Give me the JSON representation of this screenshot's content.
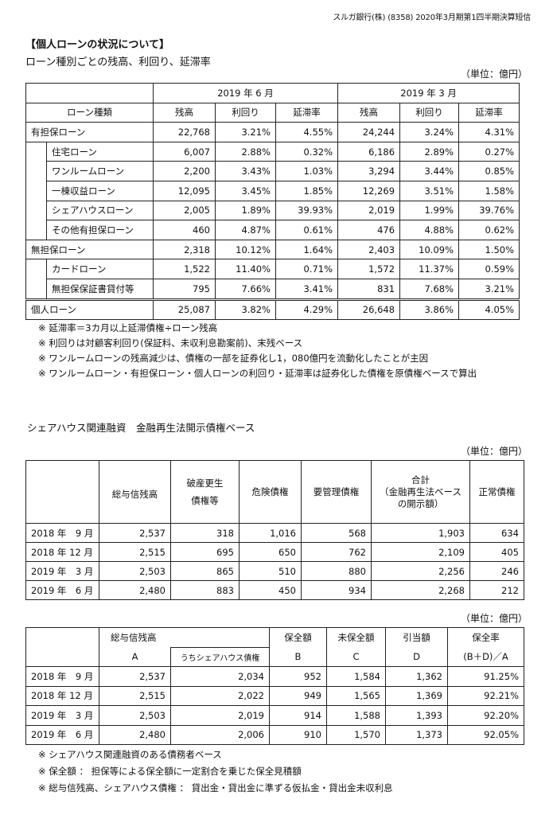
{
  "header": "スルガ銀行(株) (8358) 2020年3月期第1四半期決算短信",
  "section1": {
    "title": "【個人ローンの状況について】",
    "subtitle": "ローン種別ごとの残高、利回り、延滞率",
    "unit": "（単位：億円）",
    "period_a": "2019 年 6 月",
    "period_b": "2019 年 3 月",
    "col_type": "ローン種類",
    "col_balance": "残高",
    "col_yield": "利回り",
    "col_delinq": "延滞率",
    "rows": [
      {
        "name": "有担保ローン",
        "a": [
          "22,768",
          "3.21%",
          "4.55%"
        ],
        "b": [
          "24,244",
          "3.24%",
          "4.31%"
        ]
      },
      {
        "name": "住宅ローン",
        "a": [
          "6,007",
          "2.88%",
          "0.32%"
        ],
        "b": [
          "6,186",
          "2.89%",
          "0.27%"
        ]
      },
      {
        "name": "ワンルームローン",
        "a": [
          "2,200",
          "3.43%",
          "1.03%"
        ],
        "b": [
          "3,294",
          "3.44%",
          "0.85%"
        ]
      },
      {
        "name": "一棟収益ローン",
        "a": [
          "12,095",
          "3.45%",
          "1.85%"
        ],
        "b": [
          "12,269",
          "3.51%",
          "1.58%"
        ]
      },
      {
        "name": "シェアハウスローン",
        "a": [
          "2,005",
          "1.89%",
          "39.93%"
        ],
        "b": [
          "2,019",
          "1.99%",
          "39.76%"
        ]
      },
      {
        "name": "その他有担保ローン",
        "a": [
          "460",
          "4.87%",
          "0.61%"
        ],
        "b": [
          "476",
          "4.88%",
          "0.62%"
        ]
      },
      {
        "name": "無担保ローン",
        "a": [
          "2,318",
          "10.12%",
          "1.64%"
        ],
        "b": [
          "2,403",
          "10.09%",
          "1.50%"
        ]
      },
      {
        "name": "カードローン",
        "a": [
          "1,522",
          "11.40%",
          "0.71%"
        ],
        "b": [
          "1,572",
          "11.37%",
          "0.59%"
        ]
      },
      {
        "name": "無担保保証書貸付等",
        "a": [
          "795",
          "7.66%",
          "3.41%"
        ],
        "b": [
          "831",
          "7.68%",
          "3.21%"
        ]
      },
      {
        "name": "個人ローン",
        "a": [
          "25,087",
          "3.82%",
          "4.29%"
        ],
        "b": [
          "26,648",
          "3.86%",
          "4.05%"
        ]
      }
    ],
    "notes": [
      "※ 延滞率＝3カ月以上延滞債権÷ローン残高",
      "※ 利回りは対顧客利回り(保証料、未収利息勘案前)、末残ベース",
      "※ ワンルームローンの残高減少は、債権の一部を証券化し1，080億円を流動化したことが主因",
      "※ ワンルームローン・有担保ローン・個人ローンの利回り・延滞率は証券化した債権を原債権ベースで算出"
    ]
  },
  "section2": {
    "subtitle": "シェアハウス関連融資　金融再生法開示債権ベース",
    "unit": "（単位：億円）",
    "headers": {
      "total": "総与信残高",
      "bankrupt_1": "破産更生",
      "bankrupt_2": "債権等",
      "doubtful": "危険債権",
      "substandard": "要管理債権",
      "sum_1": "合計",
      "sum_2": "（金融再生法ベース",
      "sum_3": "の開示額）",
      "normal": "正常債権"
    },
    "rows": [
      {
        "period": "2018 年　9 月",
        "vals": [
          "2,537",
          "318",
          "1,016",
          "568",
          "1,903",
          "634"
        ]
      },
      {
        "period": "2018 年 12 月",
        "vals": [
          "2,515",
          "695",
          "650",
          "762",
          "2,109",
          "405"
        ]
      },
      {
        "period": "2019 年　3 月",
        "vals": [
          "2,503",
          "865",
          "510",
          "880",
          "2,256",
          "246"
        ]
      },
      {
        "period": "2019 年　6 月",
        "vals": [
          "2,480",
          "883",
          "450",
          "934",
          "2,268",
          "212"
        ]
      }
    ]
  },
  "section3": {
    "unit": "（単位：億円）",
    "headers": {
      "total": "総与信残高",
      "total_a": "A",
      "share": "うちシェアハウス債権",
      "covered": "保全額",
      "covered_b": "B",
      "uncovered": "未保全額",
      "uncovered_c": "C",
      "reserve": "引当額",
      "reserve_d": "D",
      "ratio": "保全率",
      "ratio_formula": "(B＋D)／A"
    },
    "rows": [
      {
        "period": "2018 年　9 月",
        "vals": [
          "2,537",
          "2,034",
          "952",
          "1,584",
          "1,362",
          "91.25%"
        ]
      },
      {
        "period": "2018 年 12 月",
        "vals": [
          "2,515",
          "2,022",
          "949",
          "1,565",
          "1,369",
          "92.21%"
        ]
      },
      {
        "period": "2019 年　3 月",
        "vals": [
          "2,503",
          "2,019",
          "914",
          "1,588",
          "1,393",
          "92.20%"
        ]
      },
      {
        "period": "2019 年　6 月",
        "vals": [
          "2,480",
          "2,006",
          "910",
          "1,570",
          "1,373",
          "92.05%"
        ]
      }
    ],
    "notes": [
      "※ シェアハウス関連融資のある債務者ベース",
      "※ 保全額 ：  担保等による保全額に一定割合を乗じた保全見積額",
      "※ 総与信残高、シェアハウス債権 ：  貸出金・貸出金に準ずる仮払金・貸出金未収利息"
    ]
  }
}
